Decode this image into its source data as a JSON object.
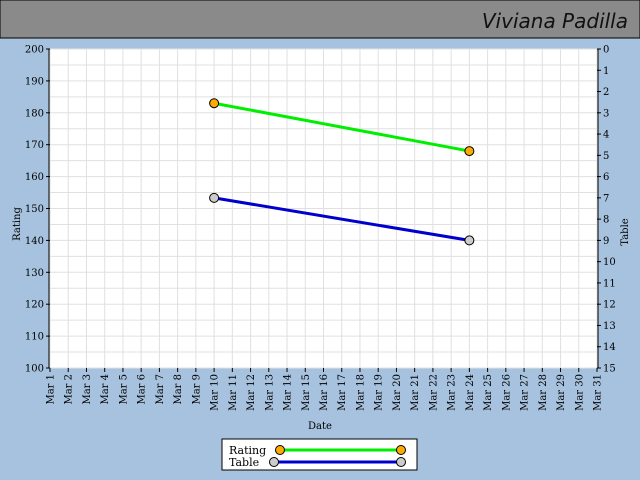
{
  "header": {
    "name": "Viviana Padilla"
  },
  "chart_data": {
    "type": "line",
    "xlabel": "Date",
    "ylabel": "Rating",
    "y2label": "Table",
    "ylim": [
      100,
      200
    ],
    "y2lim": [
      15,
      0
    ],
    "y2_inverted": true,
    "grid": true,
    "legend_position": "bottom-center",
    "x_categories": [
      "Mar 1",
      "Mar 2",
      "Mar 3",
      "Mar 4",
      "Mar 5",
      "Mar 6",
      "Mar 7",
      "Mar 8",
      "Mar 9",
      "Mar 10",
      "Mar 11",
      "Mar 12",
      "Mar 13",
      "Mar 14",
      "Mar 15",
      "Mar 16",
      "Mar 17",
      "Mar 18",
      "Mar 19",
      "Mar 20",
      "Mar 21",
      "Mar 22",
      "Mar 23",
      "Mar 24",
      "Mar 25",
      "Mar 26",
      "Mar 27",
      "Mar 28",
      "Mar 29",
      "Mar 30",
      "Mar 31"
    ],
    "y_ticks": [
      "100",
      "110",
      "120",
      "130",
      "140",
      "150",
      "160",
      "170",
      "180",
      "190",
      "200"
    ],
    "y2_ticks": [
      "0",
      "1",
      "2",
      "3",
      "4",
      "5",
      "6",
      "7",
      "8",
      "9",
      "10",
      "11",
      "12",
      "13",
      "14",
      "15"
    ],
    "series": [
      {
        "name": "Rating",
        "axis": "left",
        "line_color": "#00ee00",
        "marker_color": "#ffaa00",
        "points": [
          {
            "x": "Mar 10",
            "y": 183
          },
          {
            "x": "Mar 24",
            "y": 168
          }
        ]
      },
      {
        "name": "Table",
        "axis": "right",
        "line_color": "#0000cc",
        "marker_color": "#cccccc",
        "points": [
          {
            "x": "Mar 10",
            "y": 7
          },
          {
            "x": "Mar 24",
            "y": 9
          }
        ]
      }
    ]
  }
}
